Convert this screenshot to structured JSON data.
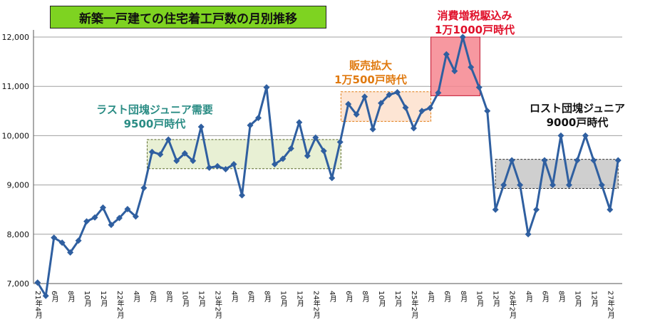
{
  "title": "新築一戸建ての住宅着工戸数の月別推移",
  "annotations": {
    "junior": {
      "line1": "ラスト団塊ジュニア需要",
      "line2": "9500戸時代",
      "color": "#2a8c84"
    },
    "hanbai": {
      "line1": "販売拡大",
      "line2": "1万500戸時代",
      "color": "#e07a10"
    },
    "shohi": {
      "line1": "消費増税駆込み",
      "line2": "1万1000戸時代",
      "color": "#e0102a"
    },
    "lost": {
      "line1": "ロスト団塊ジュニア",
      "line2": "9000戸時代",
      "color": "#111111"
    }
  },
  "chart_data": {
    "type": "line",
    "ylim": [
      7000,
      12000
    ],
    "yticks": [
      "7,000",
      "8,000",
      "9,000",
      "10,000",
      "11,000",
      "12,000"
    ],
    "x_labels": [
      "21年4月",
      "",
      "6月",
      "",
      "8月",
      "",
      "10月",
      "",
      "12月",
      "",
      "22年2月",
      "",
      "4月",
      "",
      "6月",
      "",
      "8月",
      "",
      "10月",
      "",
      "12月",
      "",
      "23年2月",
      "",
      "4月",
      "",
      "6月",
      "",
      "8月",
      "",
      "10月",
      "",
      "12月",
      "",
      "24年2月",
      "",
      "4月",
      "",
      "6月",
      "",
      "8月",
      "",
      "10月",
      "",
      "12月",
      "",
      "25年2月",
      "",
      "4月",
      "",
      "6月",
      "",
      "8月",
      "",
      "10月",
      "",
      "12月",
      "",
      "26年2月",
      "",
      "4月",
      "",
      "6月",
      "",
      "8月",
      "",
      "10月",
      "",
      "12月",
      "",
      "27年2月",
      ""
    ],
    "series": [
      {
        "values": [
          7020,
          6750,
          7930,
          7830,
          7630,
          7870,
          8260,
          8340,
          8540,
          8190,
          8330,
          8510,
          8360,
          8940,
          9670,
          9620,
          9920,
          9490,
          9640,
          9490,
          10180,
          9350,
          9380,
          9320,
          9420,
          8790,
          10210,
          10360,
          10980,
          9420,
          9530,
          9740,
          10270,
          9590,
          9960,
          9690,
          9140,
          9870,
          10640,
          10430,
          10790,
          10130,
          10660,
          10830,
          10880,
          10570,
          10150,
          10500,
          10560,
          10870,
          11650,
          11310,
          12000,
          11390,
          10980,
          10500,
          8500,
          9000,
          9500,
          9000,
          8000,
          8500,
          9500,
          9000,
          10000,
          9000,
          9500,
          10000,
          9500,
          9000,
          8500,
          9500
        ],
        "color": "#2f5fa0"
      }
    ],
    "bands": [
      {
        "name": "junior",
        "x_start": 13.9,
        "x_end": 37.6,
        "y_low": 9330,
        "y_high": 9920,
        "fill": "#e4edcc",
        "stroke": "#5a6a2a"
      },
      {
        "name": "hanbai",
        "x_start": 37.6,
        "x_end": 48.6,
        "y_low": 10290,
        "y_high": 10890,
        "fill": "#fde1cc",
        "stroke": "#e07a10"
      },
      {
        "name": "shohi",
        "x_start": 48.6,
        "x_end": 54.6,
        "y_low": 10810,
        "y_high": 12000,
        "fill": "#f6868f",
        "stroke": "#c0102a"
      },
      {
        "name": "lost",
        "x_start": 56.5,
        "x_end": 71.5,
        "y_low": 8930,
        "y_high": 9520,
        "fill": "#c7c7c7",
        "stroke": "#333333"
      }
    ],
    "grid": true
  }
}
